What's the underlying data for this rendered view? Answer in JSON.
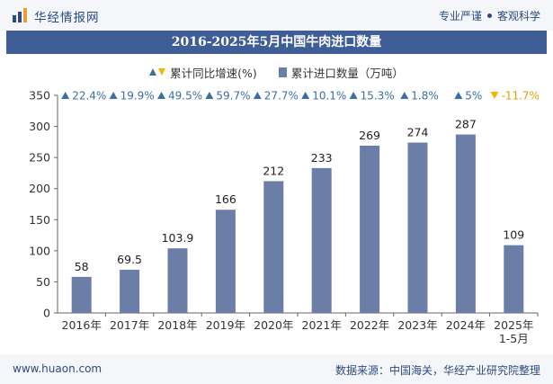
{
  "header": {
    "brand": "华经情报网",
    "tag1": "专业严谨",
    "tag2": "客观科学"
  },
  "title": "2016-2025年5月中国牛肉进口数量",
  "legend": {
    "growth_label": "累计同比增速(%)",
    "volume_label": "累计进口数量（万吨）"
  },
  "colors": {
    "bar": "#6b7ea8",
    "up": "#3a6fa6",
    "down": "#f4b400",
    "title_bg": "#3f5d96"
  },
  "chart_data": {
    "type": "bar",
    "title": "2016-2025年5月中国牛肉进口数量",
    "categories": [
      "2016年",
      "2017年",
      "2018年",
      "2019年",
      "2020年",
      "2021年",
      "2022年",
      "2023年",
      "2024年",
      "2025年\n1-5月"
    ],
    "series": [
      {
        "name": "累计进口数量（万吨）",
        "values": [
          58,
          69.5,
          103.9,
          166,
          212,
          233,
          269,
          274,
          287,
          109
        ]
      },
      {
        "name": "累计同比增速(%)",
        "values": [
          22.4,
          19.9,
          49.5,
          59.7,
          27.7,
          10.1,
          15.3,
          1.8,
          5,
          -11.7
        ]
      }
    ],
    "value_labels": [
      "58",
      "69.5",
      "103.9",
      "166",
      "212",
      "233",
      "269",
      "274",
      "287",
      "109"
    ],
    "growth_labels": [
      "22.4%",
      "19.9%",
      "49.5%",
      "59.7%",
      "27.7%",
      "10.1%",
      "15.3%",
      "1.8%",
      "5%",
      "-11.7%"
    ],
    "y_ticks": [
      "0",
      "50",
      "100",
      "150",
      "200",
      "250",
      "300",
      "350"
    ],
    "ylim": [
      0,
      350
    ],
    "xlabel": "",
    "ylabel": ""
  },
  "footer": {
    "url": "www.huaon.com",
    "source": "数据来源：中国海关，华经产业研究院整理"
  }
}
